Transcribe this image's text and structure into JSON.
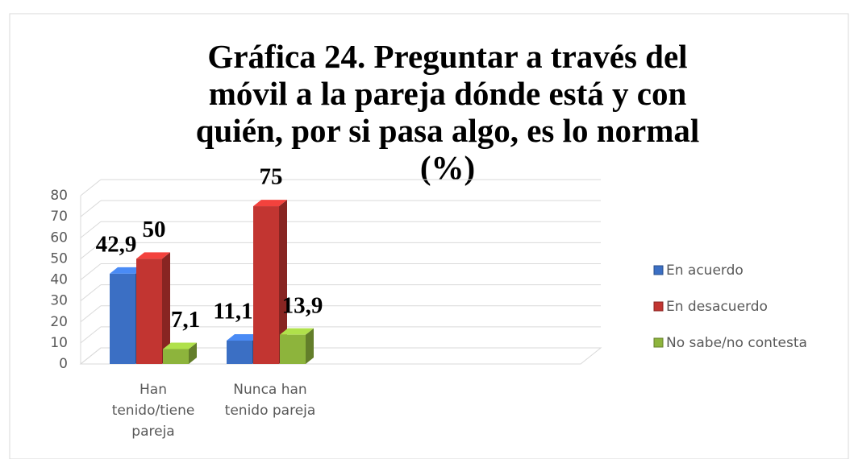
{
  "chart_data": {
    "type": "bar3d",
    "title": "Gráfica 24. Preguntar a través del móvil a la pareja dónde está y con quién, por si pasa algo, es lo normal (%)",
    "categories": [
      "Han tenido/tiene pareja",
      "Nunca han tenido pareja"
    ],
    "series": [
      {
        "name": "En acuerdo",
        "color": "#3b6fc4",
        "values": [
          42.9,
          11.1
        ],
        "value_labels": [
          "42,9",
          "11,1"
        ]
      },
      {
        "name": "En desacuerdo",
        "color": "#c23531",
        "values": [
          50,
          75
        ]
      },
      {
        "name": "No sabe/no contesta",
        "color": "#8db43c",
        "values": [
          7.1,
          13.9
        ],
        "value_labels": [
          "7,1",
          "13,9"
        ]
      }
    ],
    "ylim": [
      0,
      80
    ],
    "yticks": [
      0,
      10,
      20,
      30,
      40,
      50,
      60,
      70,
      80
    ],
    "grid": true,
    "legend": "right"
  }
}
